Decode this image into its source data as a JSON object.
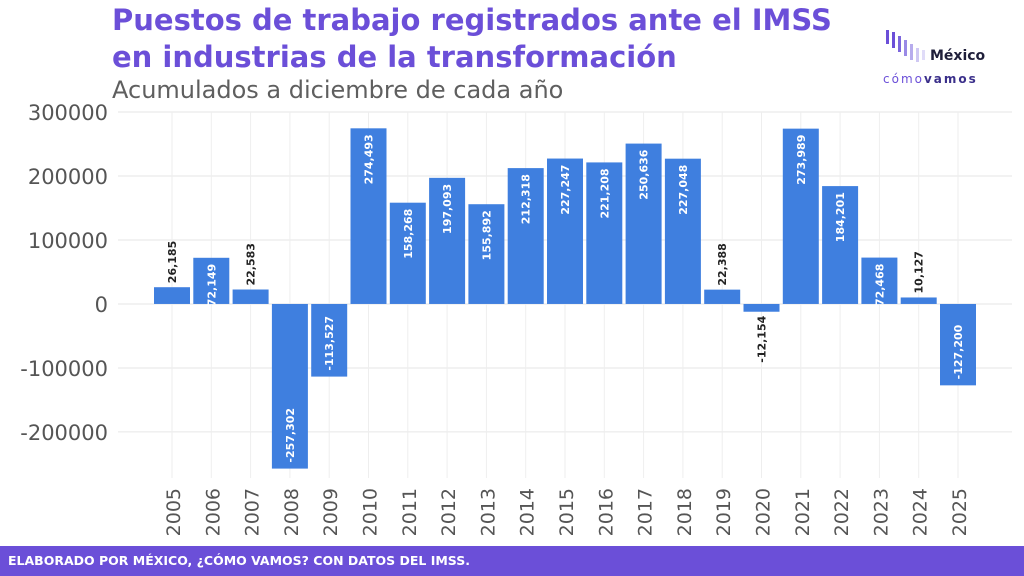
{
  "header": {
    "title": "Puestos de trabajo registrados ante el IMSS en industrias de la transformación",
    "subtitle": "Acumulados a diciembre de cada año"
  },
  "logo": {
    "main": "México",
    "sub_light": "cómo",
    "sub_bold": "vamos",
    "icon": "bar-waves-logo-icon"
  },
  "footer": {
    "text": "ELABORADO POR MÉXICO, ¿CÓMO VAMOS? CON DATOS DEL IMSS."
  },
  "chart_data": {
    "type": "bar",
    "title": "Puestos de trabajo registrados ante el IMSS en industrias de la transformación",
    "subtitle": "Acumulados a diciembre de cada año",
    "xlabel": "",
    "ylabel": "",
    "categories": [
      "2005",
      "2006",
      "2007",
      "2008",
      "2009",
      "2010",
      "2011",
      "2012",
      "2013",
      "2014",
      "2015",
      "2016",
      "2017",
      "2018",
      "2019",
      "2020",
      "2021",
      "2022",
      "2023",
      "2024",
      "2025"
    ],
    "values": [
      26185,
      72149,
      22583,
      -257302,
      -113527,
      274493,
      158268,
      197093,
      155892,
      212318,
      227247,
      221208,
      250636,
      227048,
      22388,
      -12154,
      273989,
      184201,
      72468,
      10127,
      -127200
    ],
    "data_labels": [
      "26,185",
      "72,149",
      "22,583",
      "-257,302",
      "-113,527",
      "274,493",
      "158,268",
      "197,093",
      "155,892",
      "212,318",
      "227,247",
      "221,208",
      "250,636",
      "227,048",
      "22,388",
      "-12,154",
      "273,989",
      "184,201",
      "72,468",
      "10,127",
      "-127,200"
    ],
    "yticks": [
      -200000,
      -100000,
      0,
      100000,
      200000,
      300000
    ],
    "ytick_labels": [
      "-200000",
      "-100000",
      "0",
      "100000",
      "200000",
      "300000"
    ],
    "ylim": [
      -272000,
      300000
    ],
    "grid": true,
    "bar_color": "#3f7fdf"
  }
}
